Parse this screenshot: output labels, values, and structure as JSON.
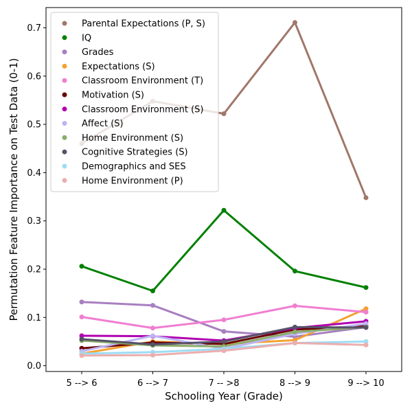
{
  "chart_data": {
    "type": "line",
    "xlabel": "Schooling Year (Grade)",
    "ylabel": "Permutation Feature Importance on Test Data (0-1)",
    "categories": [
      "5 --> 6",
      "6 --> 7",
      "7 -- >8",
      "8 --> 9",
      "9 --> 10"
    ],
    "ylim": [
      -0.012,
      0.742
    ],
    "yticks": [
      "0.0",
      "0.1",
      "0.2",
      "0.3",
      "0.4",
      "0.5",
      "0.6",
      "0.7"
    ],
    "legend_position": "upper-left",
    "grid": false,
    "series": [
      {
        "name": "Parental Expectations (P, S)",
        "color": "#a0776a",
        "values": [
          0.46,
          0.548,
          0.522,
          0.711,
          0.348
        ]
      },
      {
        "name": "IQ",
        "color": "#008000",
        "values": [
          0.206,
          0.155,
          0.322,
          0.196,
          0.162
        ]
      },
      {
        "name": "Grades",
        "color": "#a87fc0",
        "values": [
          0.132,
          0.125,
          0.071,
          0.06,
          0.08
        ]
      },
      {
        "name": "Expectations (S)",
        "color": "#f5a030",
        "values": [
          0.025,
          0.05,
          0.045,
          0.053,
          0.118
        ]
      },
      {
        "name": "Classroom Environment (T)",
        "color": "#f07ed0",
        "values": [
          0.101,
          0.078,
          0.095,
          0.124,
          0.111
        ]
      },
      {
        "name": "Motivation (S)",
        "color": "#6b0000",
        "values": [
          0.036,
          0.048,
          0.045,
          0.075,
          0.082
        ]
      },
      {
        "name": "Classroom Environment (S)",
        "color": "#b000b0",
        "values": [
          0.062,
          0.061,
          0.052,
          0.078,
          0.092
        ]
      },
      {
        "name": "Affect (S)",
        "color": "#bdb4f5",
        "values": [
          0.03,
          0.062,
          0.035,
          0.066,
          0.087
        ]
      },
      {
        "name": "Home Environment (S)",
        "color": "#8aac6a",
        "values": [
          0.052,
          0.042,
          0.04,
          0.07,
          0.08
        ]
      },
      {
        "name": "Cognitive Strategies (S)",
        "color": "#555268",
        "values": [
          0.055,
          0.044,
          0.05,
          0.08,
          0.079
        ]
      },
      {
        "name": "Demographics and SES",
        "color": "#9edcf5",
        "values": [
          0.025,
          0.028,
          0.035,
          0.047,
          0.05
        ]
      },
      {
        "name": "Home Environment (P)",
        "color": "#ebaeae",
        "values": [
          0.021,
          0.022,
          0.031,
          0.047,
          0.043
        ]
      }
    ]
  }
}
